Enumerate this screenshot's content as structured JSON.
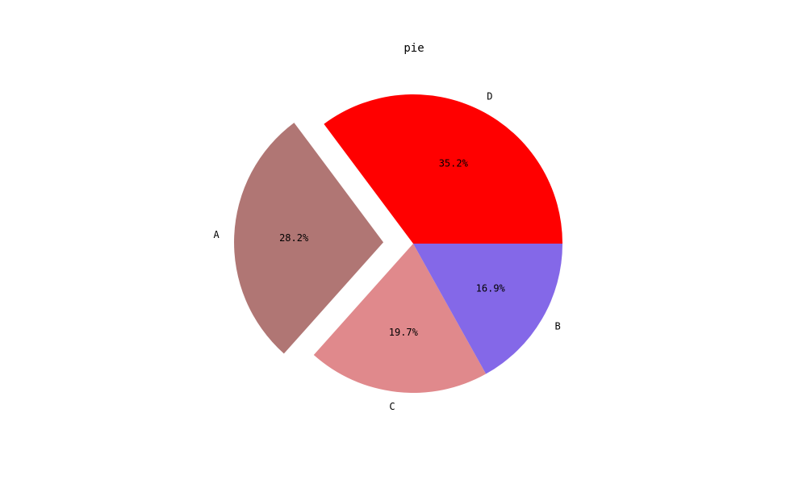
{
  "chart_data": {
    "type": "pie",
    "title": "pie",
    "start_angle_deg": 0,
    "direction": "counterclockwise",
    "slices": [
      {
        "label": "D",
        "value": 35.2,
        "pct_label": "35.2%",
        "color": "#ff0000",
        "explode": 0
      },
      {
        "label": "A",
        "value": 28.2,
        "pct_label": "28.2%",
        "color": "#b07674",
        "explode": 0.2
      },
      {
        "label": "C",
        "value": 19.7,
        "pct_label": "19.7%",
        "color": "#e0898c",
        "explode": 0
      },
      {
        "label": "B",
        "value": 16.9,
        "pct_label": "16.9%",
        "color": "#8468e8",
        "explode": 0
      }
    ]
  }
}
